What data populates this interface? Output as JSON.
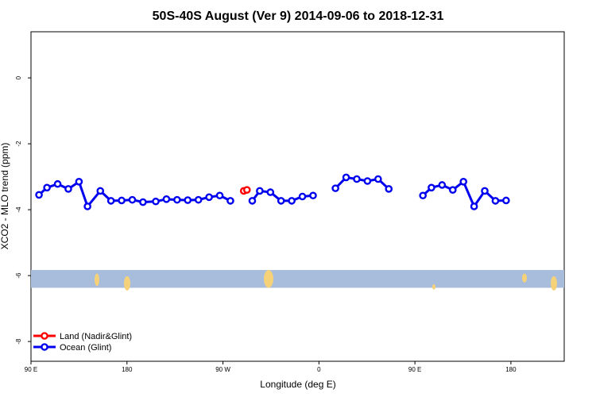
{
  "chart_data": {
    "type": "line",
    "title": "50S-40S August (Ver 9)   2014-09-06 to 2018-12-31",
    "xlabel": "Longitude (deg E)",
    "ylabel": "XCO2 - MLO trend (ppm)",
    "xlim": [
      90,
      590
    ],
    "ylim": [
      -8.6,
      1.4
    ],
    "x_ticks": [
      {
        "value": 90,
        "label": "90 E"
      },
      {
        "value": 180,
        "label": "180"
      },
      {
        "value": 270,
        "label": "90 W"
      },
      {
        "value": 360,
        "label": "0"
      },
      {
        "value": 450,
        "label": "90 E"
      },
      {
        "value": 540,
        "label": "180"
      }
    ],
    "y_ticks": [
      {
        "value": 0,
        "label": "0"
      },
      {
        "value": -2,
        "label": "-2"
      },
      {
        "value": -4,
        "label": "-4"
      },
      {
        "value": -6,
        "label": "-6"
      },
      {
        "value": -8,
        "label": "-8"
      }
    ],
    "series": [
      {
        "name": "Land (Nadir&Glint)",
        "color": "#ff0000",
        "segments": [
          [
            [
              289.5,
              -3.43
            ],
            [
              292.5,
              -3.4
            ]
          ]
        ]
      },
      {
        "name": "Ocean (Glint)",
        "color": "#0000ee",
        "segments": [
          [
            [
              97.5,
              -3.55
            ],
            [
              105,
              -3.33
            ],
            [
              115,
              -3.22
            ],
            [
              125,
              -3.37
            ],
            [
              135,
              -3.15
            ],
            [
              143,
              -3.9
            ],
            [
              155,
              -3.43
            ],
            [
              165,
              -3.73
            ],
            [
              175,
              -3.72
            ],
            [
              185,
              -3.7
            ],
            [
              195,
              -3.77
            ],
            [
              207,
              -3.75
            ],
            [
              217,
              -3.68
            ],
            [
              227,
              -3.7
            ],
            [
              237,
              -3.71
            ],
            [
              247,
              -3.7
            ],
            [
              257,
              -3.62
            ],
            [
              267,
              -3.57
            ],
            [
              277,
              -3.73
            ]
          ],
          [
            [
              297.5,
              -3.73
            ],
            [
              304.5,
              -3.43
            ],
            [
              314.5,
              -3.47
            ],
            [
              324.5,
              -3.73
            ],
            [
              334.5,
              -3.73
            ],
            [
              344.5,
              -3.6
            ],
            [
              354.5,
              -3.57
            ]
          ],
          [
            [
              375.5,
              -3.35
            ],
            [
              385.5,
              -3.02
            ],
            [
              395.5,
              -3.07
            ],
            [
              405.5,
              -3.13
            ],
            [
              415.5,
              -3.07
            ],
            [
              425.5,
              -3.37
            ]
          ],
          [
            [
              457.5,
              -3.57
            ],
            [
              465.5,
              -3.33
            ],
            [
              475.5,
              -3.25
            ],
            [
              485.5,
              -3.4
            ],
            [
              495.5,
              -3.15
            ],
            [
              505.5,
              -3.9
            ],
            [
              515.5,
              -3.43
            ],
            [
              525.5,
              -3.73
            ],
            [
              535.5,
              -3.72
            ]
          ]
        ]
      }
    ],
    "land_strip": {
      "y_range": [
        -6.37,
        -5.83
      ],
      "ocean_color": "#a8bcdc",
      "land_color": "#f5d27a"
    },
    "legend_position": "bottom-left"
  }
}
